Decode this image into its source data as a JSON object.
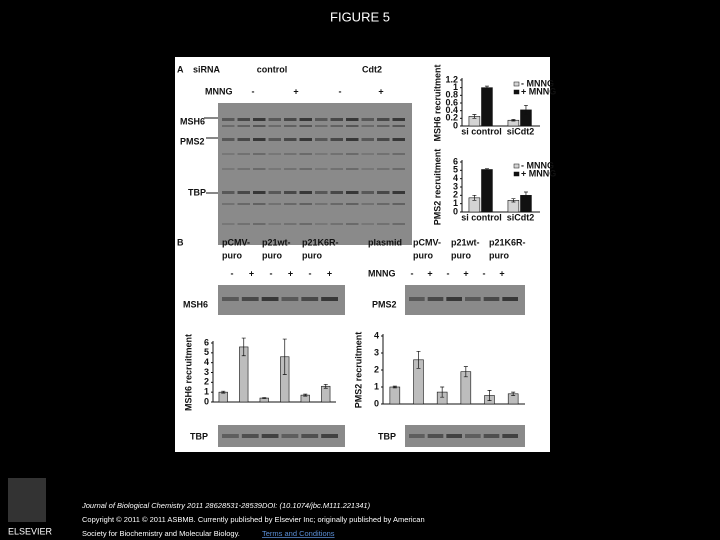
{
  "title": "FIGURE 5",
  "figure": {
    "panel_a": {
      "letter": "A",
      "sirna": "siRNA",
      "control": "control",
      "cdt2": "Cdt2",
      "mnng": "MNNG",
      "treatments": [
        "-",
        "+",
        "-",
        "+"
      ],
      "msh6": "MSH6",
      "pms2": "PMS2",
      "tbp": "TBP"
    },
    "panel_b": {
      "letter": "B",
      "left": {
        "constructs": [
          [
            "pCMV-",
            "puro"
          ],
          [
            "p21wt-",
            "puro"
          ],
          [
            "p21K6R-",
            "puro"
          ]
        ],
        "treatments": [
          "-",
          "+",
          "-",
          "+",
          "-",
          "+"
        ],
        "protein": "MSH6",
        "tbp": "TBP"
      },
      "right": {
        "plasmid": "plasmid",
        "constructs": [
          [
            "pCMV-",
            "puro"
          ],
          [
            "p21wt-",
            "puro"
          ],
          [
            "p21K6R-",
            "puro"
          ]
        ],
        "mnng": "MNNG",
        "treatments": [
          "-",
          "+",
          "-",
          "+",
          "-",
          "+"
        ],
        "protein": "PMS2",
        "tbp": "TBP"
      }
    },
    "charts": [
      {
        "type": "bar",
        "y_label": "MSH6 recruitment",
        "categories": [
          "si control",
          "siCdt2"
        ],
        "series": [
          {
            "name": "- MNNG",
            "color": "#d4d4d4",
            "values": [
              0.25,
              0.15
            ],
            "errors": [
              0.05,
              0.02
            ]
          },
          {
            "name": "+ MNNG",
            "color": "#111111",
            "values": [
              1.0,
              0.42
            ],
            "errors": [
              0.04,
              0.12
            ]
          }
        ],
        "ylim": [
          0,
          1.2
        ],
        "yticks": [
          0,
          0.2,
          0.4,
          0.6,
          0.8,
          1,
          1.2
        ]
      },
      {
        "type": "bar",
        "y_label": "PMS2 recruitment",
        "categories": [
          "si control",
          "siCdt2"
        ],
        "series": [
          {
            "name": "- MNNG",
            "color": "#d4d4d4",
            "values": [
              1.7,
              1.4
            ],
            "errors": [
              0.3,
              0.2
            ]
          },
          {
            "name": "+ MNNG",
            "color": "#111111",
            "values": [
              5.1,
              2.0
            ],
            "errors": [
              0.1,
              0.4
            ]
          }
        ],
        "ylim": [
          0,
          6
        ],
        "yticks": [
          0,
          1,
          2,
          3,
          4,
          5,
          6
        ]
      },
      {
        "type": "bar",
        "y_label": "MSH6 recruitment",
        "color": "#bdbdbd",
        "values": [
          1.0,
          5.6,
          0.4,
          4.6,
          0.7,
          1.6
        ],
        "errors": [
          0.1,
          0.9,
          0.05,
          1.8,
          0.1,
          0.2
        ],
        "ylim": [
          0,
          6
        ],
        "yticks": [
          0,
          1,
          2,
          3,
          4,
          5,
          6
        ]
      },
      {
        "type": "bar",
        "y_label": "PMS2 recruitment",
        "color": "#bdbdbd",
        "values": [
          1.0,
          2.6,
          0.7,
          1.9,
          0.5,
          0.6
        ],
        "errors": [
          0.05,
          0.5,
          0.3,
          0.3,
          0.3,
          0.1
        ],
        "ylim": [
          0,
          4
        ],
        "yticks": [
          0,
          1,
          2,
          3,
          4
        ]
      }
    ]
  },
  "footer": {
    "publisher": "ELSEVIER",
    "line1": "Journal of Biological Chemistry 2011 28628531-28539DOI: (10.1074/jbc.M111.221341)",
    "line2": "Copyright © 2011 © 2011 ASBMB. Currently published by Elsevier Inc; originally published by American",
    "line3": "Society for Biochemistry and Molecular Biology.",
    "link": "Terms and Conditions"
  }
}
